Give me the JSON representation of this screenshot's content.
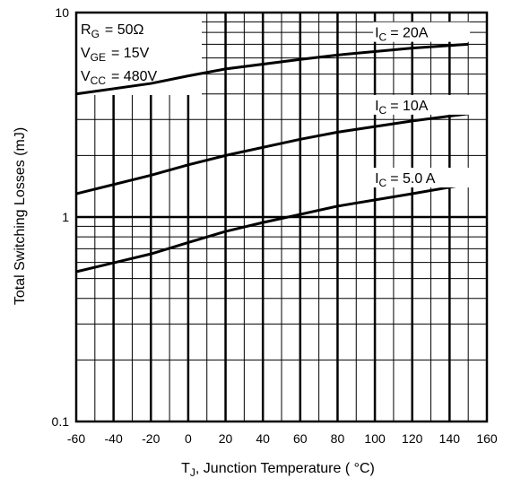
{
  "chart_data": {
    "type": "line",
    "title": "",
    "xlabel": "T",
    "xlabel_sub": "J",
    "xlabel_rest": ", Junction Temperature ( °C)",
    "ylabel": "Total Switching Losses (mJ)",
    "x_scale": "linear",
    "y_scale": "log",
    "xlim": [
      -60,
      160
    ],
    "ylim": [
      0.1,
      10
    ],
    "x_ticks": [
      -60,
      -40,
      -20,
      0,
      20,
      40,
      60,
      80,
      100,
      120,
      140,
      160
    ],
    "x_tick_labels": [
      "-60",
      "-40",
      "-20",
      "0",
      "20",
      "40",
      "60",
      "80",
      "100",
      "120",
      "140",
      "160"
    ],
    "y_tick_labels": [
      {
        "value": 10,
        "label": "10"
      },
      {
        "value": 1,
        "label": "1"
      },
      {
        "value": 0.1,
        "label": "0.1"
      }
    ],
    "grid": true,
    "conditions": [
      {
        "name": "R",
        "sub": "G",
        "value": "= 50Ω"
      },
      {
        "name": "V",
        "sub": "GE",
        "value": "= 15V"
      },
      {
        "name": "V",
        "sub": "CC",
        "value": "= 480V"
      }
    ],
    "series": [
      {
        "label_name": "I",
        "label_sub": "C",
        "label_value": "= 20A",
        "x": [
          -60,
          -20,
          0,
          20,
          60,
          80,
          120,
          150
        ],
        "y": [
          4.0,
          4.5,
          4.9,
          5.3,
          5.9,
          6.2,
          6.7,
          7.0
        ]
      },
      {
        "label_name": "I",
        "label_sub": "C",
        "label_value": "= 10A",
        "x": [
          -60,
          -20,
          0,
          20,
          60,
          80,
          120,
          150
        ],
        "y": [
          1.3,
          1.6,
          1.8,
          2.0,
          2.4,
          2.6,
          2.95,
          3.2
        ]
      },
      {
        "label_name": "I",
        "label_sub": "C",
        "label_value": "= 5.0 A",
        "x": [
          -60,
          -20,
          0,
          20,
          40,
          60,
          80,
          120,
          150
        ],
        "y": [
          0.54,
          0.66,
          0.75,
          0.85,
          0.94,
          1.03,
          1.13,
          1.3,
          1.45
        ]
      }
    ]
  }
}
